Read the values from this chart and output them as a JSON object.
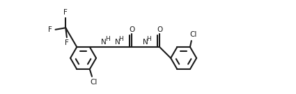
{
  "bg_color": "#ffffff",
  "bond_color": "#1a1a1a",
  "text_color": "#1a1a1a",
  "lw": 1.5,
  "fs": 7.5,
  "fs_small": 6.5,
  "figsize": [
    4.25,
    1.36
  ],
  "dpi": 100,
  "xlim": [
    -0.3,
    9.2
  ],
  "ylim": [
    -1.6,
    2.6
  ]
}
